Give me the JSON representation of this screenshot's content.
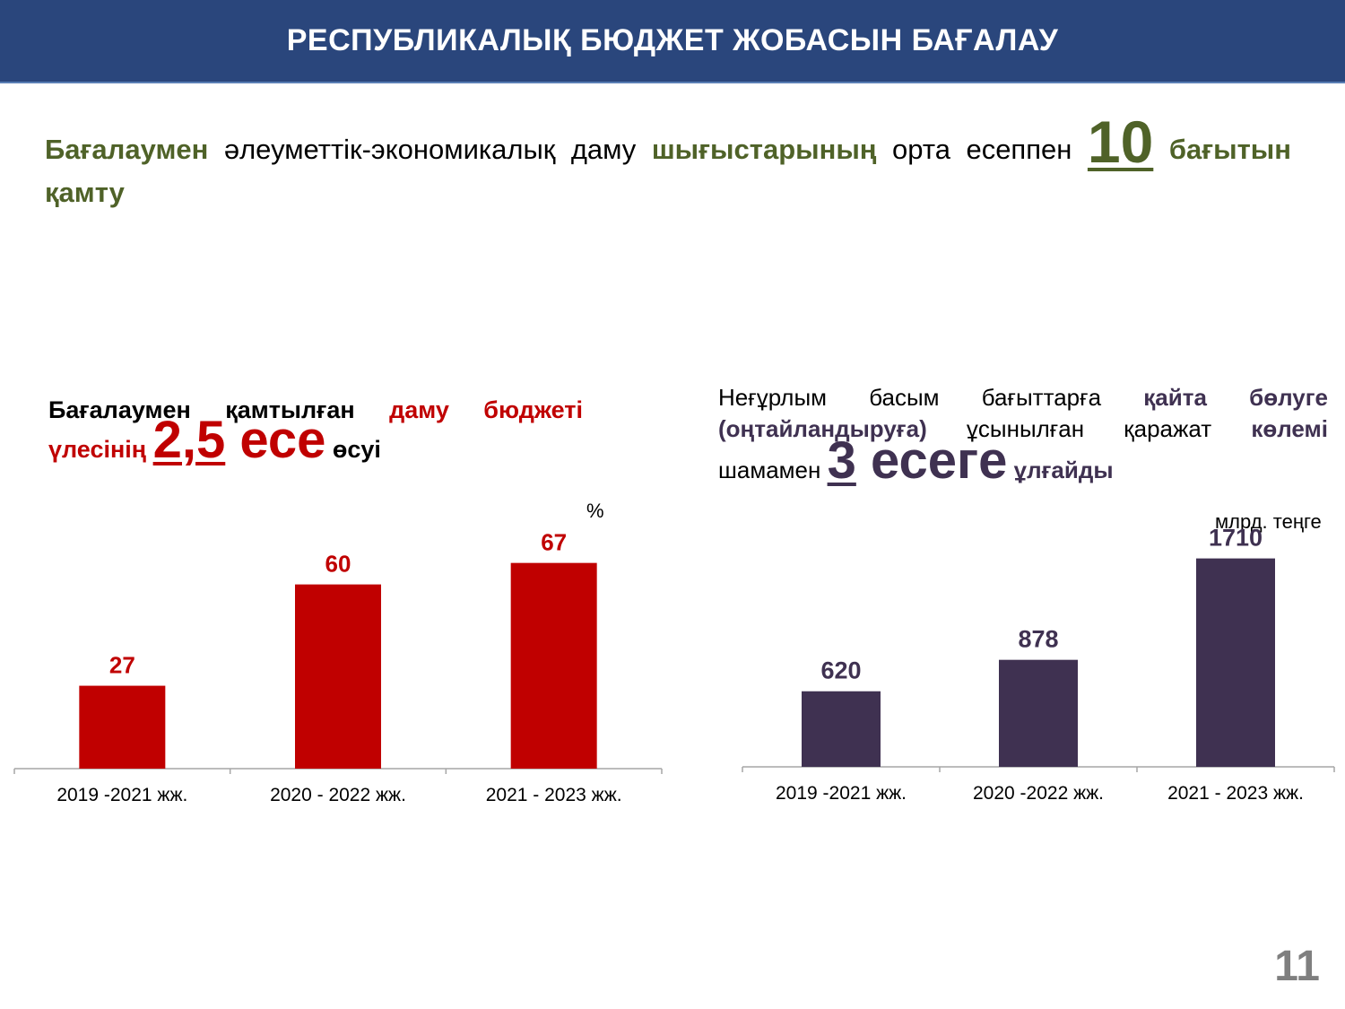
{
  "header": {
    "title": "РЕСПУБЛИКАЛЫҚ БЮДЖЕТ ЖОБАСЫН БАҒАЛАУ"
  },
  "intro": {
    "part1": "Бағалаумен",
    "part2": " әлеуметтік-экономикалық даму ",
    "part3": "шығыстарының",
    "part4": " орта есеппен ",
    "big_number": "10",
    "part5": "бағытын қамту"
  },
  "left_panel": {
    "t1": "Бағалаумен қамтылған ",
    "t2": "даму бюджеті үлесінің",
    "big": "2,5",
    "big2": " есе",
    "t3": " өсуі",
    "unit": "%"
  },
  "right_panel": {
    "t1": "Неғұрлым басым бағыттарға ",
    "t2": "қайта бөлуге (оңтайландыруға)",
    "t3": " ұсынылған қаражат ",
    "t4": "көлемі",
    "t5": " шамамен ",
    "big": "3",
    "big2": " есеге",
    "t6": " ұлғайды",
    "unit": "млрд. теңге"
  },
  "chart_data": [
    {
      "type": "bar",
      "categories": [
        "2019 -2021 жж.",
        "2020 - 2022 жж.",
        "2021 - 2023 жж."
      ],
      "values": [
        27,
        60,
        67
      ],
      "ylim": [
        0,
        78
      ],
      "bar_color": "#c00000",
      "label_color": "#c00000"
    },
    {
      "type": "bar",
      "categories": [
        "2019 -2021 жж.",
        "2020 -2022 жж.",
        "2021 - 2023 жж."
      ],
      "values": [
        620,
        878,
        1710
      ],
      "ylim": [
        0,
        1950
      ],
      "bar_color": "#3f3151",
      "label_color": "#3f3151"
    }
  ],
  "footer": {
    "page_number": "11"
  }
}
